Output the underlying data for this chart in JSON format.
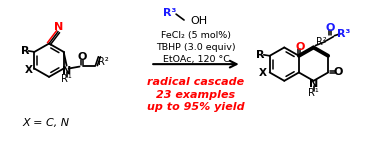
{
  "background_color": "#ffffff",
  "fig_width": 3.78,
  "fig_height": 1.42,
  "dpi": 100,
  "reaction_text_lines": [
    "FeCl₂ (5 mol%)",
    "TBHP (3.0 equiv)",
    "EtOAc, 120 °C"
  ],
  "italic_red_lines": [
    "radical cascade",
    "23 examples",
    "up to 95% yield"
  ],
  "x_label": "X = C, N",
  "red_color": "#ff0000",
  "blue_color": "#1a1aff",
  "black_color": "#000000"
}
